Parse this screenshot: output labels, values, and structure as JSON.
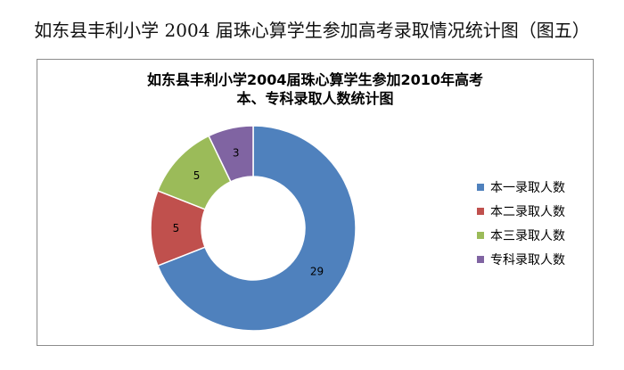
{
  "caption": "如东县丰利小学 2004 届珠心算学生参加高考录取情况统计图（图五）",
  "chart_data": {
    "type": "pie",
    "donut": true,
    "title_lines": [
      "如东县丰利小学2004届珠心算学生参加2010年高考",
      "本、专科录取人数统计图"
    ],
    "categories": [
      "本一录取人数",
      "本二录取人数",
      "本三录取人数",
      "专科录取人数"
    ],
    "values": [
      29,
      5,
      5,
      3
    ],
    "colors": [
      "#4f81bd",
      "#c0504d",
      "#9bbb59",
      "#8064a2"
    ],
    "legend_position": "right"
  }
}
